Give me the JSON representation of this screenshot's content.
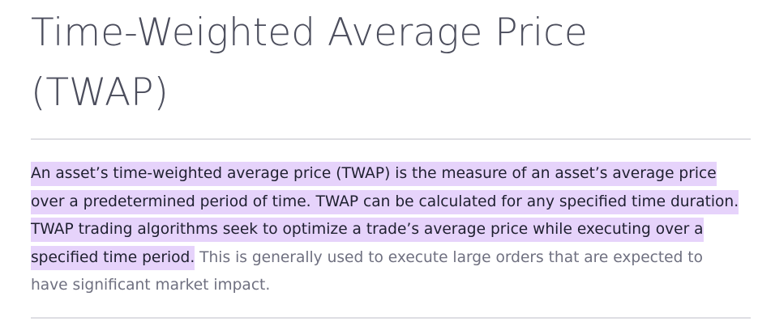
{
  "article": {
    "title": "Time-Weighted Average Price (TWAP)",
    "paragraph": {
      "highlighted": "An asset’s time-weighted average price (TWAP) is the measure of an asset’s average price over a predetermined period of time. TWAP can be calculated for any specified time duration. TWAP trading algorithms seek to optimize a trade’s average price while executing over a specified time period.",
      "rest": " This is generally used to execute large orders that are expected to have significant market impact."
    }
  },
  "colors": {
    "title": "#4b4d5c",
    "text": "#6f7080",
    "highlight_bg": "#e6d3fb",
    "highlight_text": "#1f2030",
    "divider": "#dedee3"
  }
}
